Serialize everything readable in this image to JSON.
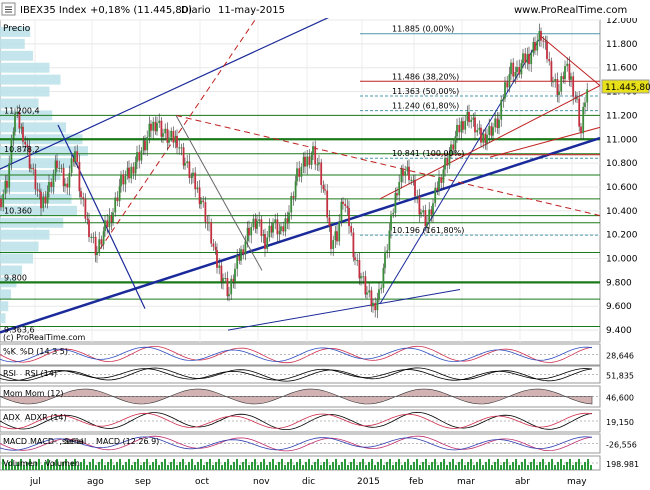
{
  "header": {
    "symbol": "IBEX35 Index",
    "change": "+0,18% (11.445,80)",
    "period": "Diario",
    "date": "11-may-2015",
    "site": "www.ProRealTime.com"
  },
  "colors": {
    "up": "#3a8a3a",
    "down": "#c23040",
    "hline": "#1a7a1a",
    "trend_blue": "#1a2a9a",
    "trend_red": "#c02020",
    "fib": "#4a9aa8",
    "volume_profile": "#b8e0e8",
    "price_tag": "#e8e018"
  },
  "chart_data": {
    "type": "candlestick",
    "title": "IBEX35 Index",
    "pane_label": "Precio",
    "watermark": "(c) ProRealTime.com",
    "ylim": [
      9300,
      12000
    ],
    "yticks": [
      "12.000",
      "11.800",
      "11.600",
      "11.400",
      "11.200",
      "11.000",
      "10.800",
      "10.600",
      "10.400",
      "10.200",
      "10.000",
      "9.800",
      "9.600",
      "9.400"
    ],
    "xticks": [
      "jul",
      "ago",
      "sep",
      "oct",
      "nov",
      "dic",
      "2015",
      "feb",
      "mar",
      "abr",
      "may"
    ],
    "last_price": "11.445,80",
    "level_labels": [
      "11.200,4",
      "10.878,2",
      "10.360",
      "9.800",
      "9.363,6"
    ],
    "fib_labels": [
      "11.885 (0,00%)",
      "11.486 (38,20%)",
      "11.363 (50,00%)",
      "11.240 (61,80%)",
      "10.841 (100,00%)",
      "10.196 (161,80%)"
    ],
    "horizontal_levels": [
      11885,
      11486,
      11363,
      11240,
      11200,
      11000,
      10878,
      10841,
      10700,
      10500,
      10360,
      10300,
      10196,
      10050,
      9800,
      9660,
      9430
    ],
    "price_path": [
      [
        0,
        10500
      ],
      [
        6,
        10650
      ],
      [
        14,
        11200
      ],
      [
        22,
        11050
      ],
      [
        30,
        10760
      ],
      [
        40,
        10450
      ],
      [
        48,
        10600
      ],
      [
        56,
        10800
      ],
      [
        64,
        10600
      ],
      [
        74,
        10900
      ],
      [
        80,
        10500
      ],
      [
        88,
        10250
      ],
      [
        96,
        10050
      ],
      [
        104,
        10250
      ],
      [
        112,
        10400
      ],
      [
        120,
        10650
      ],
      [
        128,
        10700
      ],
      [
        136,
        10850
      ],
      [
        144,
        10950
      ],
      [
        150,
        11100
      ],
      [
        156,
        11150
      ],
      [
        162,
        11050
      ],
      [
        168,
        11000
      ],
      [
        176,
        11000
      ],
      [
        184,
        10800
      ],
      [
        192,
        10650
      ],
      [
        200,
        10500
      ],
      [
        208,
        10250
      ],
      [
        216,
        9950
      ],
      [
        222,
        9850
      ],
      [
        228,
        9700
      ],
      [
        234,
        9900
      ],
      [
        240,
        10050
      ],
      [
        248,
        10250
      ],
      [
        256,
        10300
      ],
      [
        264,
        10150
      ],
      [
        272,
        10300
      ],
      [
        280,
        10200
      ],
      [
        288,
        10400
      ],
      [
        296,
        10700
      ],
      [
        304,
        10800
      ],
      [
        312,
        10900
      ],
      [
        318,
        10750
      ],
      [
        324,
        10500
      ],
      [
        330,
        10150
      ],
      [
        336,
        10200
      ],
      [
        342,
        10500
      ],
      [
        348,
        10300
      ],
      [
        354,
        10000
      ],
      [
        360,
        9850
      ],
      [
        366,
        9700
      ],
      [
        372,
        9600
      ],
      [
        378,
        9700
      ],
      [
        384,
        10000
      ],
      [
        390,
        10300
      ],
      [
        396,
        10600
      ],
      [
        402,
        10750
      ],
      [
        408,
        10700
      ],
      [
        414,
        10550
      ],
      [
        420,
        10400
      ],
      [
        426,
        10300
      ],
      [
        432,
        10450
      ],
      [
        438,
        10650
      ],
      [
        444,
        10800
      ],
      [
        450,
        10900
      ],
      [
        456,
        11050
      ],
      [
        462,
        11150
      ],
      [
        468,
        11200
      ],
      [
        474,
        11100
      ],
      [
        480,
        11000
      ],
      [
        486,
        11050
      ],
      [
        492,
        11100
      ],
      [
        498,
        11150
      ],
      [
        504,
        11450
      ],
      [
        510,
        11600
      ],
      [
        516,
        11550
      ],
      [
        522,
        11650
      ],
      [
        528,
        11700
      ],
      [
        534,
        11800
      ],
      [
        540,
        11870
      ],
      [
        546,
        11700
      ],
      [
        552,
        11500
      ],
      [
        558,
        11400
      ],
      [
        564,
        11600
      ],
      [
        570,
        11500
      ],
      [
        576,
        11300
      ],
      [
        580,
        11050
      ],
      [
        584,
        11350
      ],
      [
        588,
        11450
      ]
    ],
    "volume_profile_rows": [
      [
        11900,
        55
      ],
      [
        11800,
        45
      ],
      [
        11700,
        60
      ],
      [
        11600,
        90
      ],
      [
        11500,
        110
      ],
      [
        11400,
        90
      ],
      [
        11300,
        70
      ],
      [
        11200,
        95
      ],
      [
        11100,
        120
      ],
      [
        11000,
        150
      ],
      [
        10900,
        160
      ],
      [
        10800,
        130
      ],
      [
        10700,
        110
      ],
      [
        10600,
        100
      ],
      [
        10500,
        130
      ],
      [
        10400,
        140
      ],
      [
        10300,
        115
      ],
      [
        10200,
        90
      ],
      [
        10100,
        70
      ],
      [
        10000,
        60
      ],
      [
        9900,
        40
      ],
      [
        9800,
        30
      ],
      [
        9700,
        20
      ],
      [
        9600,
        15
      ],
      [
        9500,
        10
      ]
    ],
    "indicators": [
      {
        "name": "%K",
        "label": "%D (14 3 5)",
        "value": "28,646"
      },
      {
        "name": "RSI",
        "label": "RSI (14)",
        "value": "51,835"
      },
      {
        "name": "Mom",
        "label": "Mom (12)",
        "value": "46,600"
      },
      {
        "name": "ADX",
        "label": "ADXR (14)",
        "value": "19,150"
      },
      {
        "name": "MACD",
        "label": "MACD- ,señal",
        "label2": "Señal",
        "label3": "MACD (12 26 9)",
        "value": "-26,556"
      },
      {
        "name": "Volumen",
        "label": "Volumen",
        "value": "198.981"
      }
    ]
  }
}
